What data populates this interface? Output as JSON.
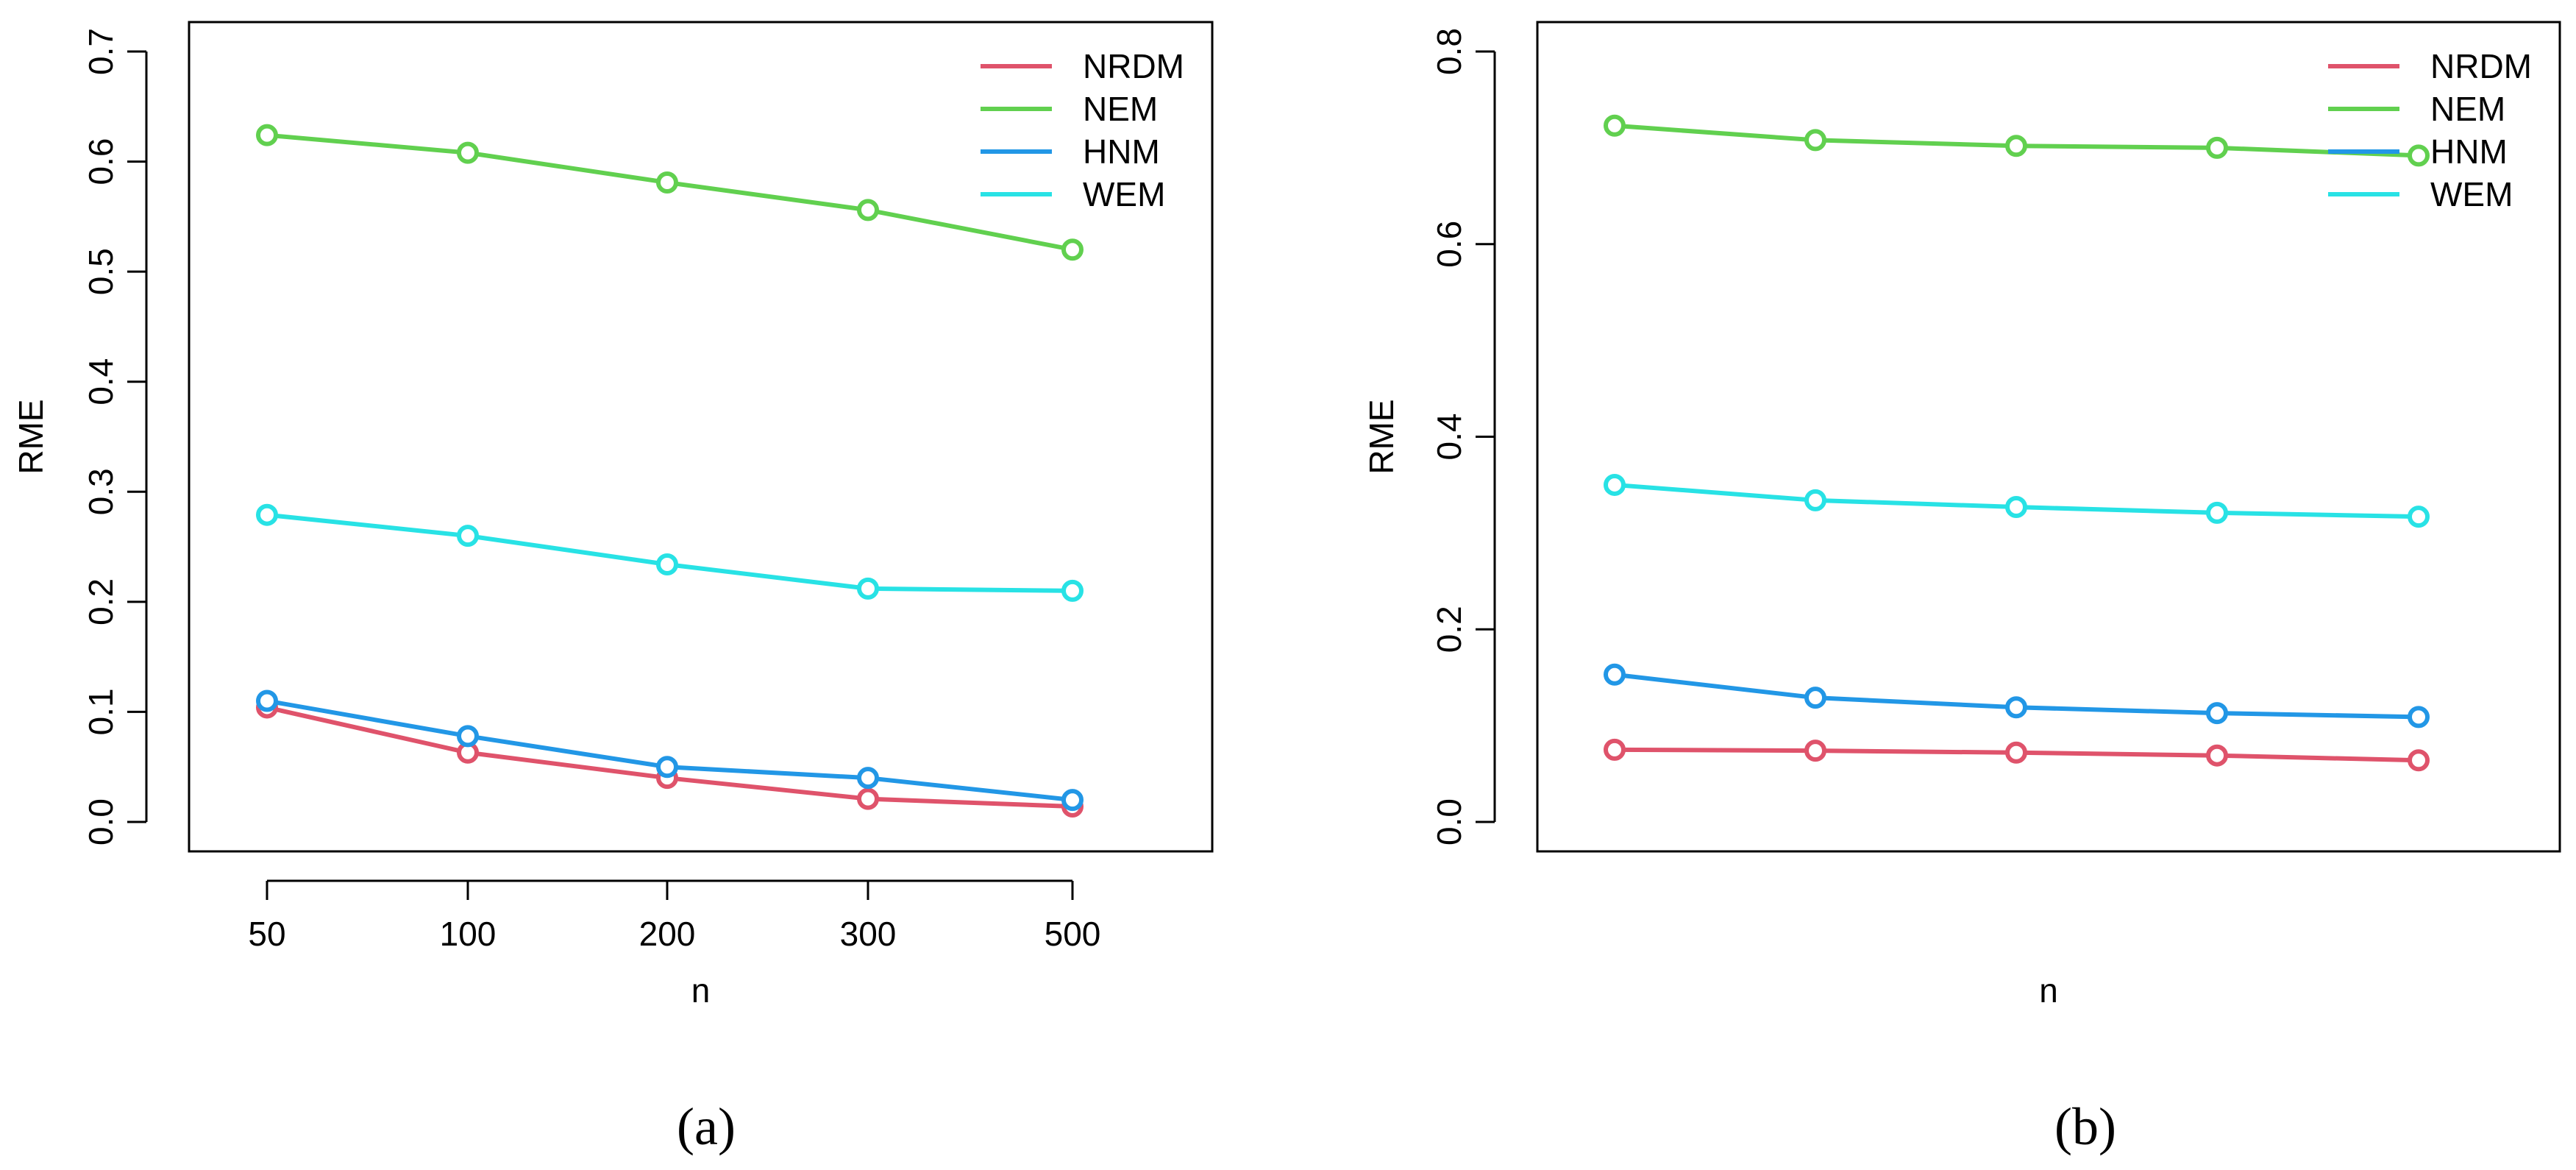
{
  "chart_data": [
    {
      "type": "line",
      "caption": "(a)",
      "x": [
        "50",
        "100",
        "200",
        "300",
        "500"
      ],
      "xlabel": "n",
      "ylabel": "RME",
      "ylim": [
        0,
        0.7
      ],
      "yticks": [
        "0.0",
        "0.1",
        "0.2",
        "0.3",
        "0.4",
        "0.5",
        "0.6",
        "0.7"
      ],
      "grid": false,
      "legend": "top-right",
      "series": [
        {
          "name": "NRDM",
          "color": "#DF536B",
          "values": [
            0.104,
            0.063,
            0.04,
            0.021,
            0.014
          ]
        },
        {
          "name": "NEM",
          "color": "#61D04F",
          "values": [
            0.624,
            0.608,
            0.581,
            0.556,
            0.52
          ]
        },
        {
          "name": "HNM",
          "color": "#2297E6",
          "values": [
            0.11,
            0.078,
            0.05,
            0.04,
            0.02
          ]
        },
        {
          "name": "WEM",
          "color": "#28E2E5",
          "values": [
            0.279,
            0.26,
            0.234,
            0.212,
            0.21
          ]
        }
      ]
    },
    {
      "type": "line",
      "caption": "(b)",
      "x": [
        "",
        "",
        "",
        "",
        ""
      ],
      "xlabel": "n",
      "ylabel": "RME",
      "ylim": [
        0,
        0.8
      ],
      "yticks": [
        "0.0",
        "0.2",
        "0.4",
        "0.6",
        "0.8"
      ],
      "grid": false,
      "legend": "top-right",
      "series": [
        {
          "name": "NRDM",
          "color": "#DF536B",
          "values": [
            0.075,
            0.074,
            0.072,
            0.069,
            0.064
          ]
        },
        {
          "name": "NEM",
          "color": "#61D04F",
          "values": [
            0.723,
            0.708,
            0.702,
            0.7,
            0.692
          ]
        },
        {
          "name": "HNM",
          "color": "#2297E6",
          "values": [
            0.153,
            0.129,
            0.119,
            0.113,
            0.109
          ]
        },
        {
          "name": "WEM",
          "color": "#28E2E5",
          "values": [
            0.35,
            0.334,
            0.327,
            0.321,
            0.317
          ]
        }
      ]
    }
  ]
}
